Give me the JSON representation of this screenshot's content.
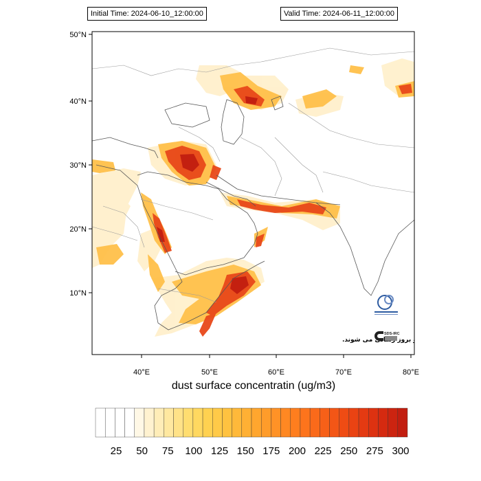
{
  "header": {
    "initial_time": "Initial Time: 2024-06-10_12:00:00",
    "valid_time": "Valid Time: 2024-06-11_12:00:00"
  },
  "map": {
    "title": "dust surface concentratin (ug/m3)",
    "lat_labels": [
      "50°N",
      "40°N",
      "30°N",
      "20°N",
      "10°N"
    ],
    "lon_labels": [
      "40°E",
      "50°E",
      "60°E",
      "70°E",
      "80°E"
    ],
    "credit_text": "این نقشه ها صرفا با اهداف پژوهشی در پژوهشگاه هواشناسی و علوم جو تولید و بروز رسانی می شوند.",
    "logo_label": "SDS-IRC"
  },
  "colorbar": {
    "labels": [
      "25",
      "50",
      "75",
      "100",
      "125",
      "150",
      "175",
      "200",
      "225",
      "250",
      "275",
      "300"
    ],
    "colors": [
      "#ffffff",
      "#ffffff",
      "#ffffff",
      "#ffffff",
      "#fff8e6",
      "#fff2d0",
      "#ffedb8",
      "#ffe8a0",
      "#ffe288",
      "#ffdd70",
      "#ffd860",
      "#ffd150",
      "#ffca48",
      "#ffc240",
      "#ffb93a",
      "#ffb034",
      "#ffa62e",
      "#ff9c2a",
      "#ff9226",
      "#ff8822",
      "#ff7e1e",
      "#fd741c",
      "#fa6a1a",
      "#f76018",
      "#f35616",
      "#ef4c14",
      "#ea4313",
      "#e43a12",
      "#dd3211",
      "#d52a10",
      "#cc2410",
      "#c21e10"
    ]
  }
}
